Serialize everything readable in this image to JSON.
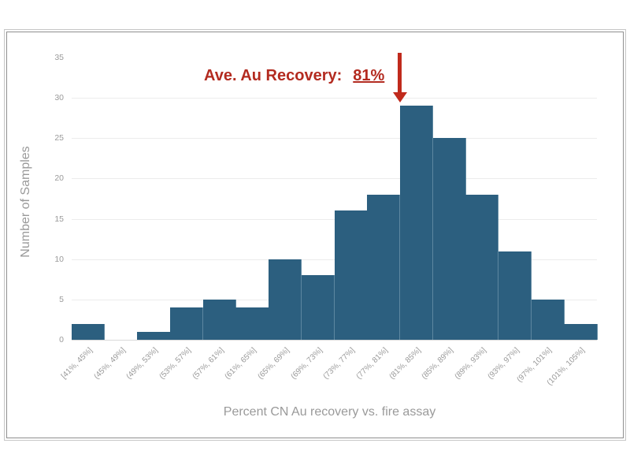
{
  "chart_data": {
    "type": "bar",
    "title": "",
    "categories": [
      "[41%, 45%]",
      "(45%, 49%]",
      "(49%, 53%]",
      "(53%, 57%]",
      "(57%, 61%]",
      "(61%, 65%]",
      "(65%, 69%]",
      "(69%, 73%]",
      "(73%, 77%]",
      "(77%, 81%]",
      "(81%, 85%]",
      "(85%, 89%]",
      "(89%, 93%]",
      "(93%, 97%]",
      "(97%, 101%]",
      "(101%, 105%]"
    ],
    "values": [
      2,
      0,
      1,
      4,
      5,
      4,
      10,
      8,
      16,
      18,
      29,
      25,
      18,
      11,
      5,
      2
    ],
    "xlabel": "Percent CN Au recovery vs. fire assay",
    "ylabel": "Number of Samples",
    "ylim": [
      0,
      35
    ],
    "ytick_step": 5,
    "grid": "horizontal",
    "legend": "none",
    "bar_color": "#2c5f7f",
    "bar_separator_color": "#5d87a0",
    "gridline_color": "#ececec",
    "tick_label_color": "#9a9a9a",
    "annotation": {
      "label": "Ave. Au Recovery:",
      "value": "81%",
      "text_color": "#b32b20",
      "arrow_color": "#c02a1c",
      "arrow_boundary_index": 10
    }
  }
}
